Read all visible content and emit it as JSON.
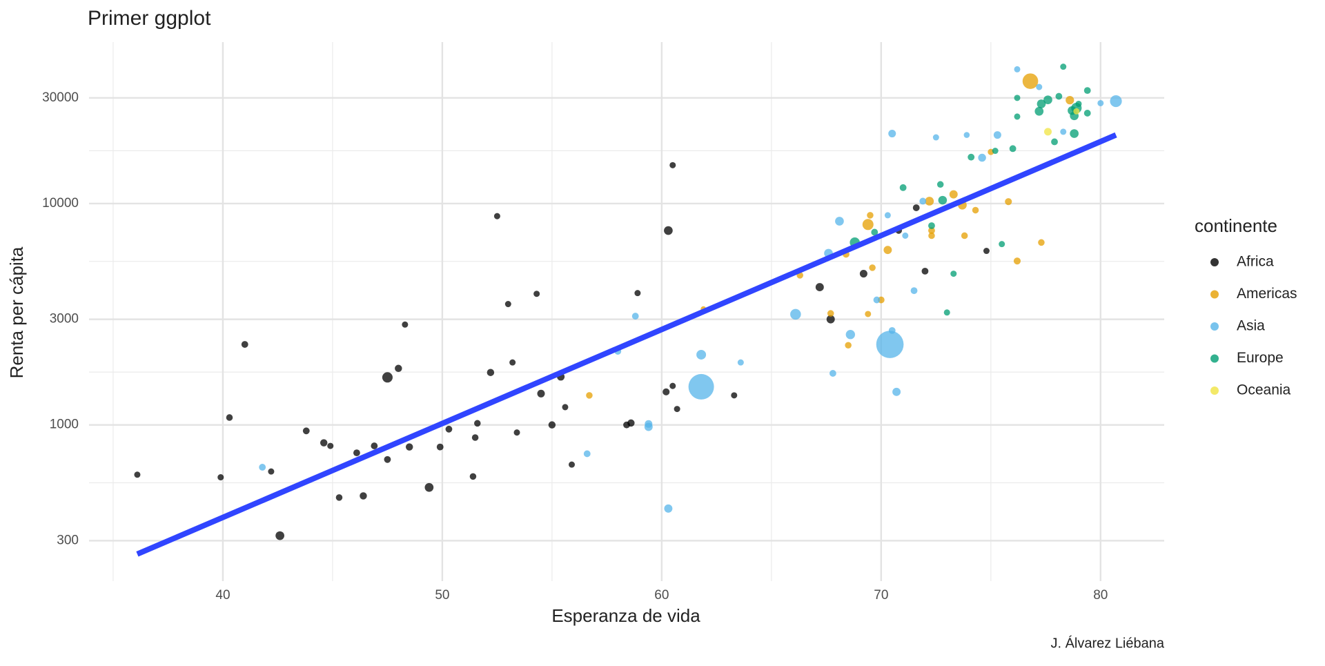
{
  "chart_data": {
    "type": "scatter",
    "title": "Primer ggplot",
    "x_label": "Esperanza de vida",
    "y_label": "Renta per cápita",
    "caption": "J. Álvarez Liébana",
    "legend_title": "continente",
    "legend_position": "right",
    "log_y": true,
    "grid": true,
    "xlim": [
      33.9,
      82.9
    ],
    "ylim": [
      197,
      53600
    ],
    "xticks": [
      40,
      50,
      60,
      70,
      80
    ],
    "yticks": [
      300,
      1000,
      3000,
      10000,
      30000
    ],
    "xminorticks": [
      35,
      45,
      55,
      65,
      75
    ],
    "yminorticks": [
      548,
      1732,
      5477,
      17321
    ],
    "series": [
      {
        "name": "Africa",
        "color": "#000000",
        "x": [
          36.1,
          39.9,
          41.0,
          40.3,
          42.2,
          42.6,
          43.8,
          44.6,
          44.9,
          45.3,
          46.1,
          46.4,
          46.9,
          47.5,
          47.5,
          48.0,
          48.3,
          48.5,
          49.4,
          49.9,
          50.3,
          51.4,
          51.5,
          51.6,
          52.2,
          52.5,
          53.0,
          53.2,
          53.4,
          54.3,
          54.5,
          55.0,
          55.4,
          55.6,
          55.9,
          58.4,
          58.6,
          58.9,
          60.2,
          60.3,
          60.5,
          60.5,
          60.7,
          63.3,
          67.2,
          67.7,
          69.2,
          70.8,
          71.6,
          72.0,
          74.8
        ],
        "values": [
          596,
          580,
          2310,
          1080,
          616,
          316,
          940,
          830,
          804,
          470,
          748,
          478,
          804,
          1640,
          698,
          1800,
          2840,
          795,
          522,
          795,
          957,
          585,
          877,
          1017,
          1725,
          8770,
          3515,
          1915,
          924,
          3910,
          1385,
          1000,
          1650,
          1203,
          662,
          1000,
          1020,
          3940,
          1410,
          7550,
          14900,
          1500,
          1180,
          1360,
          4190,
          3000,
          4820,
          7550,
          9570,
          4950,
          6110
        ],
        "sizes": [
          5,
          5,
          10,
          8,
          5,
          40,
          10,
          15,
          5,
          8,
          10,
          15,
          10,
          80,
          10,
          15,
          5,
          15,
          40,
          10,
          10,
          8,
          8,
          8,
          15,
          5,
          5,
          5,
          5,
          5,
          20,
          15,
          20,
          5,
          5,
          10,
          15,
          5,
          12,
          40,
          5,
          5,
          5,
          5,
          30,
          30,
          20,
          8,
          10,
          10,
          5
        ]
      },
      {
        "name": "Americas",
        "color": "#E69F00",
        "x": [
          56.7,
          61.9,
          66.3,
          67.7,
          68.4,
          68.5,
          69.4,
          69.5,
          69.4,
          69.6,
          70.0,
          70.3,
          72.2,
          72.3,
          72.3,
          73.3,
          73.7,
          73.8,
          74.3,
          75.0,
          75.8,
          76.2,
          76.8,
          77.3,
          78.6
        ],
        "values": [
          1360,
          3340,
          4740,
          3190,
          5900,
          2290,
          8040,
          8850,
          3170,
          5130,
          3670,
          6170,
          10250,
          7160,
          7550,
          11000,
          9830,
          7160,
          9330,
          17100,
          10200,
          5500,
          35700,
          6670,
          29300
        ],
        "sizes": [
          8,
          1,
          8,
          8,
          10,
          8,
          100,
          8,
          5,
          8,
          10,
          30,
          40,
          8,
          10,
          30,
          40,
          8,
          8,
          5,
          12,
          12,
          300,
          8,
          33
        ]
      },
      {
        "name": "Asia",
        "color": "#56B4E9",
        "x": [
          41.8,
          56.6,
          58.0,
          58.8,
          59.4,
          59.4,
          60.3,
          61.8,
          61.8,
          63.6,
          66.1,
          67.6,
          67.8,
          68.1,
          68.6,
          69.8,
          70.3,
          70.5,
          70.4,
          70.5,
          70.7,
          71.1,
          71.5,
          71.9,
          72.5,
          73.9,
          74.6,
          75.3,
          76.2,
          77.2,
          78.3,
          80.0,
          80.7
        ],
        "values": [
          644,
          741,
          2150,
          3100,
          980,
          1010,
          419,
          2075,
          1487,
          1915,
          3160,
          5960,
          1710,
          8320,
          2560,
          3670,
          8850,
          2670,
          2310,
          20700,
          1410,
          7160,
          4040,
          10250,
          19900,
          20400,
          16100,
          20400,
          40400,
          33600,
          21100,
          28400,
          29000
        ],
        "sizes": [
          10,
          10,
          10,
          10,
          30,
          20,
          30,
          60,
          1110,
          5,
          90,
          40,
          10,
          40,
          50,
          10,
          5,
          10,
          1320,
          20,
          30,
          5,
          10,
          10,
          5,
          3,
          25,
          20,
          5,
          5,
          5,
          5,
          127
        ]
      },
      {
        "name": "Europe",
        "color": "#009E73",
        "x": [
          68.8,
          69.7,
          71.0,
          72.7,
          72.3,
          72.8,
          73.0,
          73.3,
          74.1,
          75.2,
          75.5,
          76.0,
          76.2,
          76.2,
          77.2,
          77.3,
          77.6,
          78.1,
          77.9,
          78.3,
          78.7,
          78.8,
          78.8,
          79.0,
          79.4,
          79.4,
          78.9
        ],
        "values": [
          6670,
          7420,
          11800,
          12200,
          7940,
          10350,
          3220,
          4820,
          16200,
          17300,
          6560,
          17700,
          30000,
          24700,
          26100,
          28200,
          29400,
          30500,
          19000,
          41500,
          26300,
          20700,
          24900,
          28200,
          32400,
          25600,
          27000
        ],
        "sizes": [
          70,
          10,
          10,
          8,
          10,
          38,
          5,
          5,
          10,
          5,
          5,
          10,
          5,
          5,
          40,
          40,
          40,
          10,
          10,
          5,
          40,
          40,
          40,
          5,
          10,
          10,
          82
        ]
      },
      {
        "name": "Oceania",
        "color": "#F0E442",
        "x": [
          77.6,
          78.9
        ],
        "values": [
          21100,
          26100
        ],
        "sizes": [
          20,
          5
        ]
      }
    ],
    "trend": {
      "color": "#3045FF",
      "x": [
        36.1,
        80.7
      ],
      "values": [
        261,
        20400
      ]
    }
  }
}
